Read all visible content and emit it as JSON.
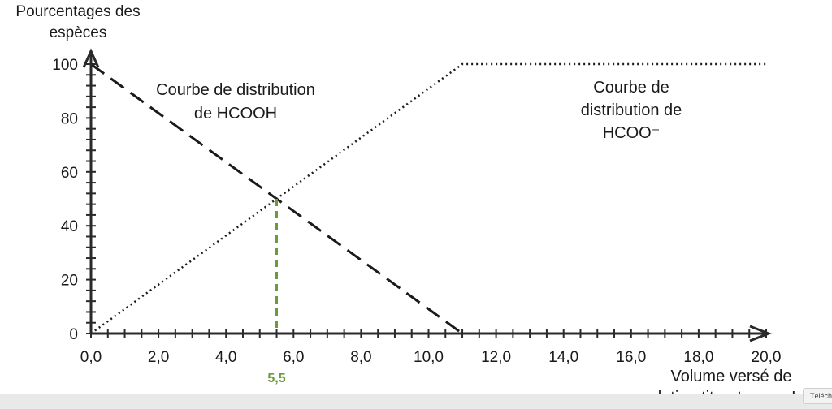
{
  "chart_data": {
    "type": "line",
    "ylabel_lines": [
      "Pourcentages des",
      "espèces"
    ],
    "xlabel_lines": [
      "Volume versé de",
      "solution titrante en mL"
    ],
    "xlim": [
      0,
      20
    ],
    "ylim": [
      0,
      100
    ],
    "x_ticks": [
      "0,0",
      "2,0",
      "4,0",
      "6,0",
      "8,0",
      "10,0",
      "12,0",
      "14,0",
      "16,0",
      "18,0",
      "20,0"
    ],
    "y_ticks": [
      "0",
      "20",
      "40",
      "60",
      "80",
      "100"
    ],
    "series": [
      {
        "style": "dashed",
        "x": [
          0,
          11,
          20
        ],
        "y": [
          100,
          0,
          0
        ]
      },
      {
        "style": "dotted",
        "x": [
          0,
          11,
          20
        ],
        "y": [
          0,
          100,
          100
        ]
      }
    ],
    "annotations": [
      {
        "lines": [
          "Courbe de distribution",
          "de HCOOH"
        ]
      },
      {
        "lines": [
          "Courbe de",
          "distribution de",
          "HCOO⁻"
        ]
      }
    ],
    "marker": {
      "x": 5.5,
      "y": 50,
      "label": "5,5",
      "color": "#6a9a3a"
    },
    "grid": false
  },
  "ui": {
    "download_chip": "Télécharger"
  }
}
